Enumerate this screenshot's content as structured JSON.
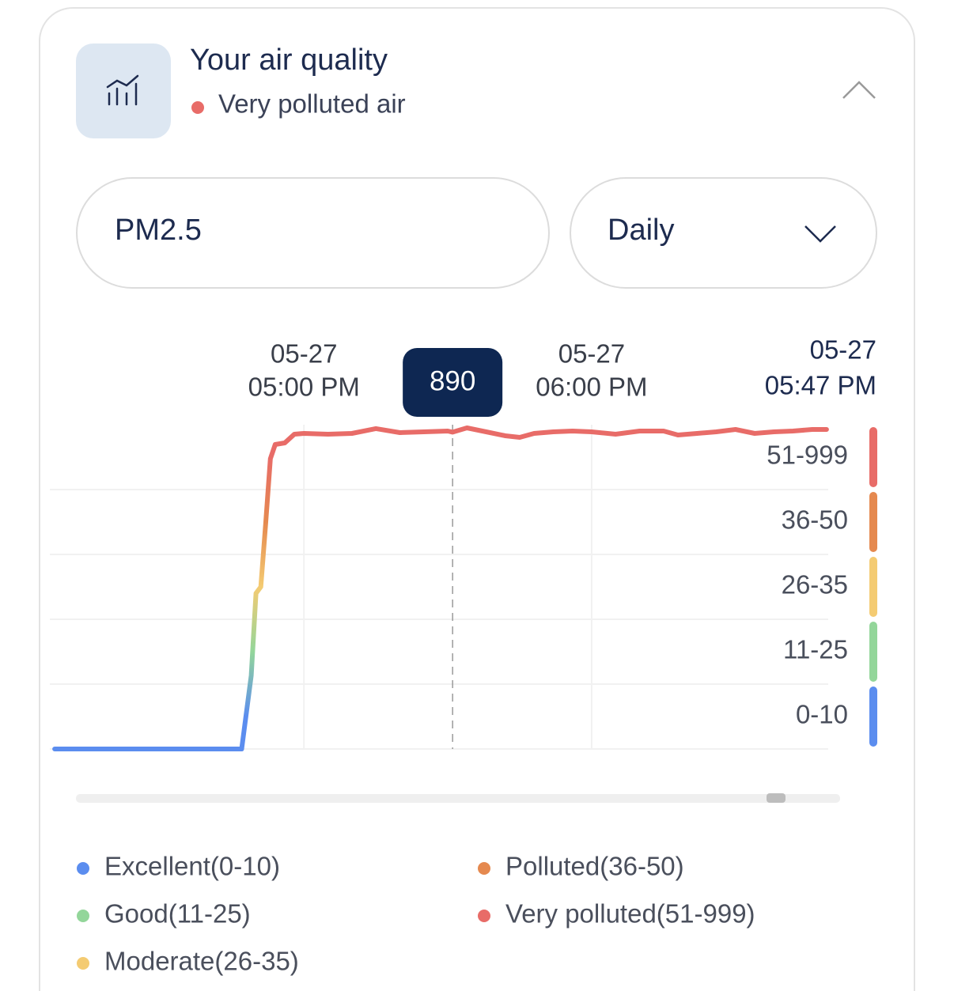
{
  "header": {
    "title": "Your air quality",
    "status": "Very polluted air",
    "status_color": "#e86c68"
  },
  "controls": {
    "pollutant": "PM2.5",
    "period": "Daily"
  },
  "chart_data": {
    "type": "line",
    "x": [
      "05-27 04:08 PM",
      "05-27 04:20 PM",
      "05-27 04:30 PM",
      "05-27 04:40 PM",
      "05-27 04:47 PM",
      "05-27 04:49 PM",
      "05-27 04:50 PM",
      "05-27 04:51 PM",
      "05-27 04:52 PM",
      "05-27 04:53 PM",
      "05-27 04:54 PM",
      "05-27 04:56 PM",
      "05-27 04:58 PM",
      "05-27 05:00 PM",
      "05-27 05:05 PM",
      "05-27 05:10 PM",
      "05-27 05:15 PM",
      "05-27 05:20 PM",
      "05-27 05:25 PM",
      "05-27 05:30 PM",
      "05-27 05:31 PM",
      "05-27 05:34 PM",
      "05-27 05:38 PM",
      "05-27 05:42 PM",
      "05-27 05:45 PM",
      "05-27 05:48 PM",
      "05-27 05:52 PM",
      "05-27 05:56 PM",
      "05-27 06:00 PM",
      "05-27 06:05 PM",
      "05-27 06:10 PM",
      "05-27 06:15 PM",
      "05-27 06:18 PM",
      "05-27 06:22 PM",
      "05-27 06:26 PM",
      "05-27 06:30 PM",
      "05-27 06:34 PM",
      "05-27 06:38 PM",
      "05-27 06:42 PM",
      "05-27 06:46 PM",
      "05-27 06:49 PM"
    ],
    "values": [
      0,
      0,
      0,
      0,
      0,
      13,
      30,
      31,
      43,
      502,
      710,
      733,
      860,
      872,
      860,
      872,
      942,
      883,
      895,
      906,
      890,
      953,
      895,
      837,
      814,
      872,
      895,
      906,
      895,
      860,
      906,
      906,
      849,
      872,
      895,
      930,
      872,
      895,
      906,
      930,
      930
    ],
    "xlim": [
      "05-27 04:07 PM",
      "05-27 06:50 PM"
    ],
    "xticks": [
      {
        "value": "05-27 05:00 PM",
        "label": [
          "05-27",
          "05:00 PM"
        ]
      },
      {
        "value": "05-27 06:00 PM",
        "label": [
          "05-27",
          "06:00 PM"
        ]
      }
    ],
    "bands": [
      {
        "label": "0-10",
        "min": 0,
        "max": 10,
        "name": "Excellent(0-10)",
        "color": "#5b8def"
      },
      {
        "label": "11-25",
        "min": 11,
        "max": 25,
        "name": "Good(11-25)",
        "color": "#93d69a"
      },
      {
        "label": "26-35",
        "min": 26,
        "max": 35,
        "name": "Moderate(26-35)",
        "color": "#f4cb72"
      },
      {
        "label": "36-50",
        "min": 36,
        "max": 50,
        "name": "Polluted(36-50)",
        "color": "#e5894f"
      },
      {
        "label": "51-999",
        "min": 51,
        "max": 999,
        "name": "Very polluted(51-999)",
        "color": "#e86c68"
      }
    ],
    "current_time": [
      "05-27",
      "05:47 PM"
    ],
    "selected_value": 890,
    "grid": true
  }
}
